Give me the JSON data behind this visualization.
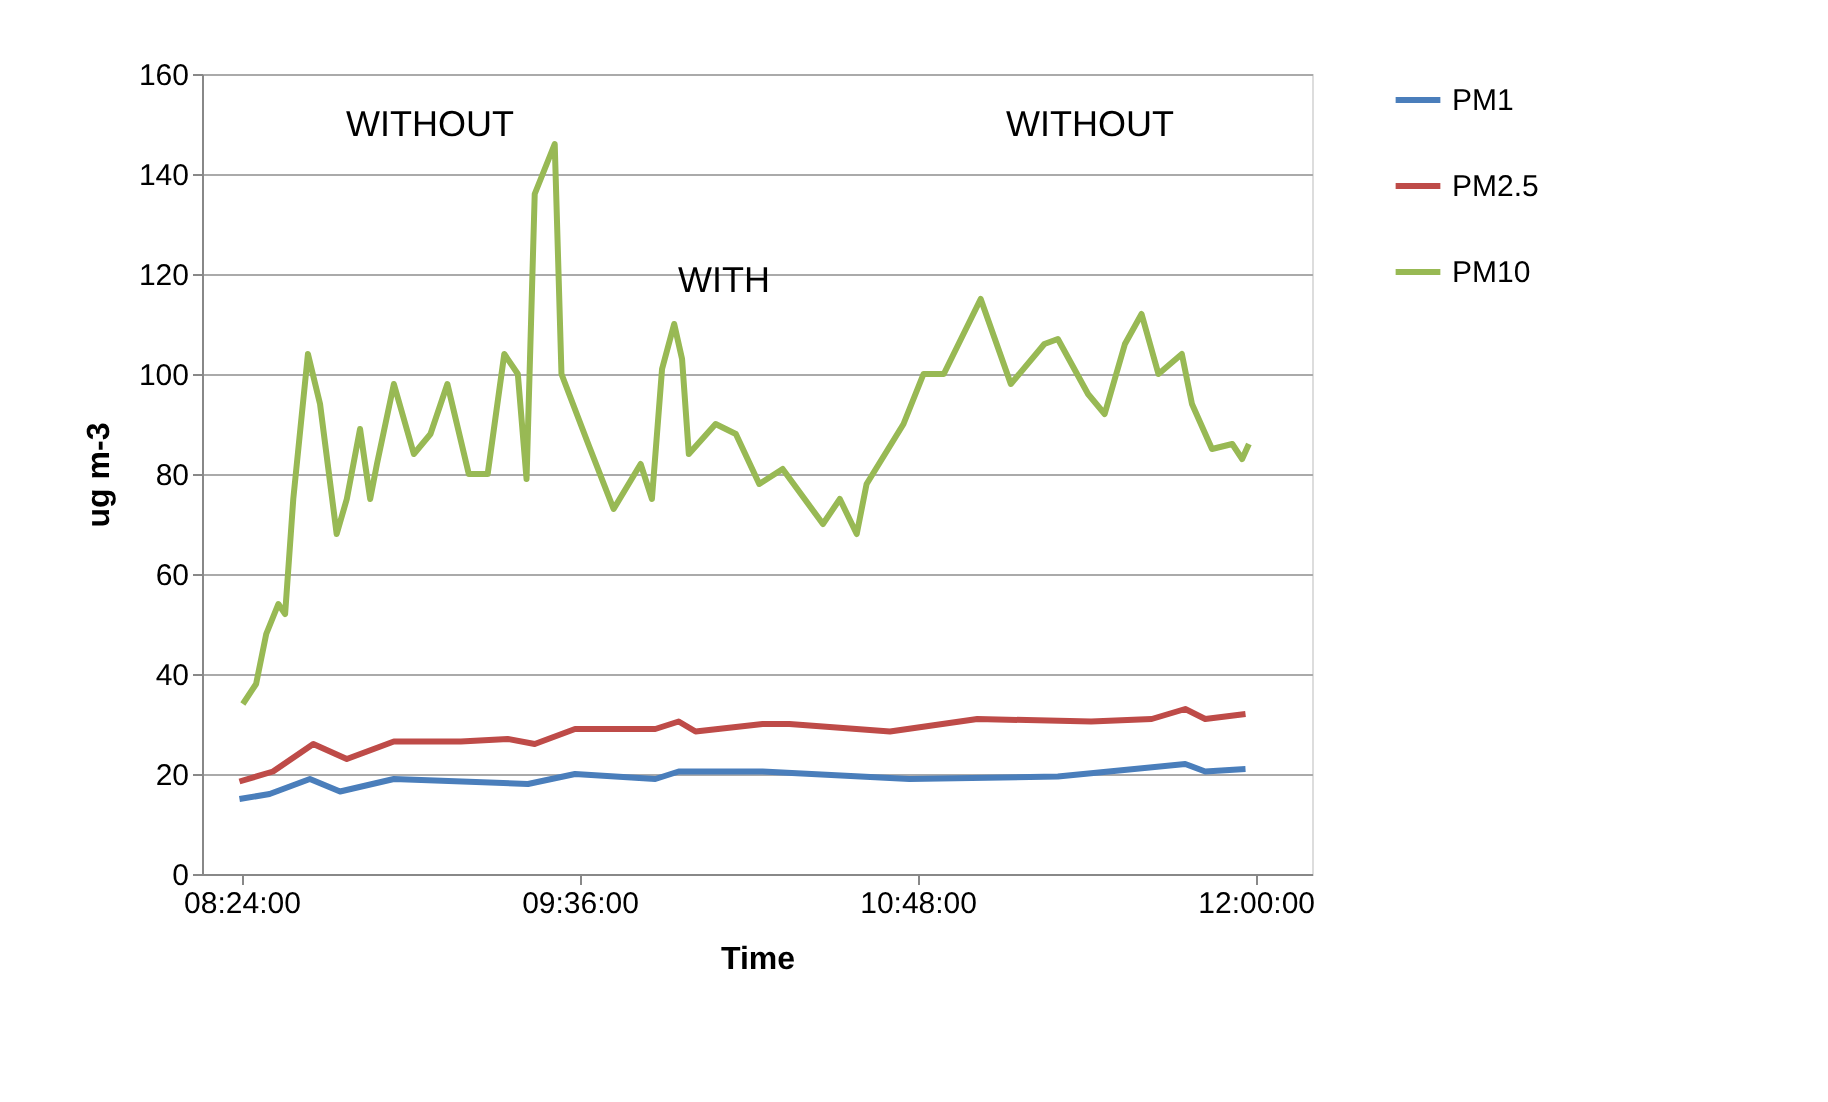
{
  "chart_data": {
    "type": "line",
    "xlabel": "Time",
    "ylabel": "ug m-3",
    "xlim": [
      8.26,
      12.2
    ],
    "ylim": [
      0,
      160
    ],
    "yticks": [
      0,
      20,
      40,
      60,
      80,
      100,
      120,
      140,
      160
    ],
    "xticks": [
      {
        "value": 8.4,
        "label": "08:24:00"
      },
      {
        "value": 9.6,
        "label": "09:36:00"
      },
      {
        "value": 10.8,
        "label": "10:48:00"
      },
      {
        "value": 12.0,
        "label": "12:00:00"
      }
    ],
    "grid": "y",
    "legend": "right",
    "marker": "none",
    "line_style": "solid",
    "series": [
      {
        "name": "PM1",
        "color": "#4a7ebb",
        "x": [
          8.393,
          8.5,
          8.643,
          8.75,
          8.941,
          9.417,
          9.584,
          9.869,
          9.952,
          10.25,
          10.771,
          11.298,
          11.75,
          11.821,
          11.964
        ],
        "values": [
          15,
          16,
          19,
          16.5,
          19,
          18,
          20,
          19,
          20.5,
          20.5,
          19,
          19.5,
          22,
          20.5,
          21
        ]
      },
      {
        "name": "PM2.5",
        "color": "#be4b48",
        "x": [
          8.393,
          8.512,
          8.655,
          8.774,
          8.941,
          9.179,
          9.345,
          9.441,
          9.584,
          9.869,
          9.952,
          10.012,
          10.25,
          10.345,
          10.702,
          11.012,
          11.416,
          11.631,
          11.75,
          11.821,
          11.964
        ],
        "values": [
          18.5,
          20.5,
          26,
          23,
          26.5,
          26.5,
          27,
          26,
          29,
          29,
          30.5,
          28.5,
          30,
          30,
          28.5,
          31,
          30.5,
          31,
          33,
          31,
          32
        ]
      },
      {
        "name": "PM10",
        "color": "#98b954",
        "x": [
          8.405,
          8.452,
          8.488,
          8.531,
          8.555,
          8.584,
          8.636,
          8.679,
          8.738,
          8.774,
          8.821,
          8.857,
          8.881,
          8.941,
          9.012,
          9.071,
          9.131,
          9.207,
          9.274,
          9.333,
          9.381,
          9.412,
          9.441,
          9.512,
          9.536,
          9.631,
          9.721,
          9.817,
          9.857,
          9.893,
          9.936,
          9.964,
          9.988,
          10.083,
          10.155,
          10.238,
          10.321,
          10.464,
          10.524,
          10.584,
          10.619,
          10.75,
          10.821,
          10.893,
          11.024,
          11.131,
          11.25,
          11.298,
          11.405,
          11.464,
          11.536,
          11.595,
          11.655,
          11.738,
          11.774,
          11.845,
          11.917,
          11.952,
          11.976
        ],
        "values": [
          34,
          38,
          48,
          54,
          52,
          75,
          104,
          94,
          68,
          75,
          89,
          75,
          82,
          98,
          84,
          88,
          98,
          80,
          80,
          104,
          100,
          79,
          136,
          146,
          100,
          86,
          73,
          82,
          75,
          101,
          110,
          103,
          84,
          90,
          88,
          78,
          81,
          70,
          75,
          68,
          78,
          90,
          100,
          100,
          115,
          98,
          106,
          107,
          96,
          92,
          106,
          112,
          100,
          104,
          94,
          85,
          86,
          83,
          86
        ]
      }
    ],
    "annotations": [
      "WITHOUT",
      "WITH",
      "WITHOUT"
    ]
  }
}
